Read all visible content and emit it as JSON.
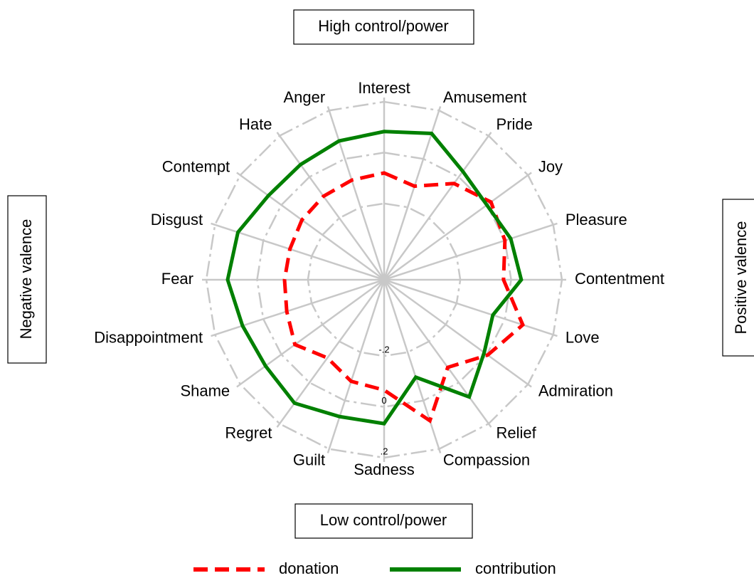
{
  "chart_data": {
    "type": "radar",
    "categories": [
      "Interest",
      "Amusement",
      "Pride",
      "Joy",
      "Pleasure",
      "Contentment",
      "Love",
      "Admiration",
      "Relief",
      "Compassion",
      "Sadness",
      "Guilt",
      "Regret",
      "Shame",
      "Disappointment",
      "Fear",
      "Disgust",
      "Contempt",
      "Hate",
      "Anger"
    ],
    "series": [
      {
        "name": "donation",
        "color": "#ff0000",
        "dash": "dashed",
        "values": [
          -0.08,
          -0.113,
          -0.032,
          0.02,
          0.0,
          -0.03,
          0.074,
          0.004,
          -0.074,
          0.083,
          -0.066,
          -0.08,
          -0.12,
          -0.066,
          -0.097,
          -0.108,
          -0.11,
          -0.1,
          -0.094,
          -0.088
        ]
      },
      {
        "name": "contribution",
        "color": "#008000",
        "dash": "solid",
        "values": [
          0.083,
          0.105,
          0.027,
          0.0,
          0.024,
          0.04,
          -0.05,
          -0.013,
          0.07,
          -0.097,
          0.066,
          0.066,
          0.1,
          0.077,
          0.086,
          0.116,
          0.105,
          0.063,
          0.06,
          0.074
        ]
      }
    ],
    "ylim": [
      -0.5,
      0.2
    ],
    "yticks": [
      {
        "value": -0.2,
        "label": "-.2"
      },
      0,
      {
        "value": 0.2,
        "label": ".2"
      }
    ],
    "grid": true,
    "annotations": [
      "High control/power",
      "Low control/power",
      "Negative valence",
      "Positive valence"
    ]
  }
}
